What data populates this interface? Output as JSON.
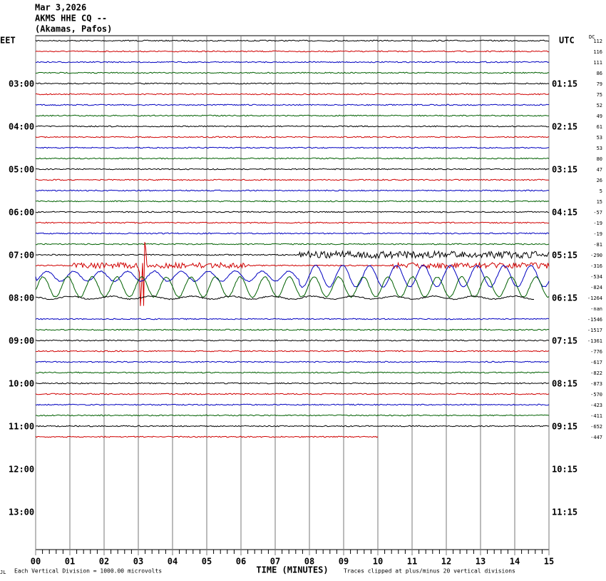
{
  "header": {
    "date": "Mar 3,2026",
    "station": "AKMS HHE CQ --",
    "location": "(Akamas, Pafos)"
  },
  "left_axis": {
    "title": "EET",
    "labels": [
      "03:00",
      "04:00",
      "05:00",
      "06:00",
      "07:00",
      "08:00",
      "09:00",
      "10:00",
      "11:00",
      "12:00",
      "13:00"
    ]
  },
  "right_axis": {
    "title": "UTC",
    "labels": [
      "01:15",
      "02:15",
      "03:15",
      "04:15",
      "05:15",
      "06:15",
      "07:15",
      "08:15",
      "09:15",
      "10:15",
      "11:15"
    ]
  },
  "dc": {
    "title": "DC",
    "values": [
      112,
      116,
      111,
      86,
      79,
      75,
      52,
      49,
      61,
      53,
      53,
      80,
      47,
      26,
      5,
      15,
      -57,
      -19,
      -19,
      -81,
      -290,
      -316,
      -534,
      -824,
      -1264,
      "-nan",
      -1546,
      -1517,
      -1361,
      -776,
      -617,
      -822,
      -873,
      -570,
      -423,
      -411,
      -652,
      -447
    ]
  },
  "trace_colors": [
    "#000000",
    "#d00000",
    "#0000c0",
    "#006000"
  ],
  "x_axis": {
    "title": "TIME (MINUTES)",
    "xlim": [
      0,
      15
    ],
    "xticks": [
      {
        "value": 0,
        "label": "00"
      },
      {
        "value": 1,
        "label": "01"
      },
      {
        "value": 2,
        "label": "02"
      },
      {
        "value": 3,
        "label": "03"
      },
      {
        "value": 4,
        "label": "04"
      },
      {
        "value": 5,
        "label": "05"
      },
      {
        "value": 6,
        "label": "06"
      },
      {
        "value": 7,
        "label": "07"
      },
      {
        "value": 8,
        "label": "08"
      },
      {
        "value": 9,
        "label": "09"
      },
      10,
      11,
      12,
      13,
      14,
      15
    ]
  },
  "footer": {
    "corner": "JL",
    "scale": "Each Vertical Division = 1000.00 microvolts",
    "clip": "Traces clipped at plus/minus 20 vertical divisions"
  }
}
